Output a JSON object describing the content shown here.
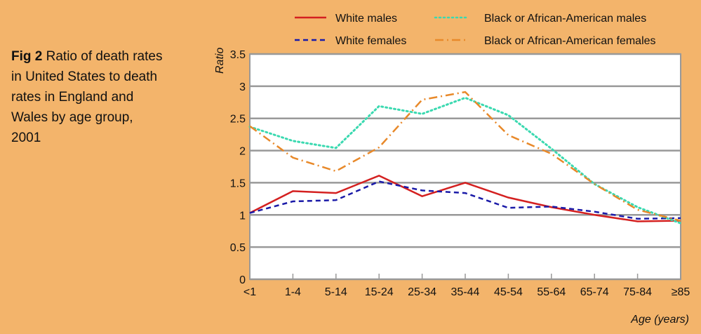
{
  "caption": {
    "fig_label": "Fig 2",
    "text": "Ratio of death rates in United States to death rates in England and Wales by age group, 2001"
  },
  "chart_data": {
    "type": "line",
    "title": "Ratio of death rates in United States to death rates in England and Wales by age group, 2001",
    "xlabel": "Age (years)",
    "ylabel": "Ratio",
    "ylim": [
      0,
      3.5
    ],
    "yticks": [
      "0",
      "0.5",
      "1",
      "1.5",
      "2",
      "2.5",
      "3",
      "3.5"
    ],
    "yticks_values": [
      0,
      0.5,
      1,
      1.5,
      2,
      2.5,
      3,
      3.5
    ],
    "grid": true,
    "legend_position": "top",
    "categories": [
      "<1",
      "1-4",
      "5-14",
      "15-24",
      "25-34",
      "35-44",
      "45-54",
      "55-64",
      "65-74",
      "75-84",
      "≥85"
    ],
    "series": [
      {
        "name": "White males",
        "color": "#d42020",
        "dash": "solid",
        "values": [
          1.03,
          1.37,
          1.34,
          1.61,
          1.29,
          1.5,
          1.27,
          1.12,
          1.0,
          0.9,
          0.91
        ]
      },
      {
        "name": "White females",
        "color": "#1a1aa8",
        "dash": "dashed",
        "values": [
          1.03,
          1.21,
          1.23,
          1.52,
          1.38,
          1.34,
          1.11,
          1.13,
          1.05,
          0.94,
          0.95
        ]
      },
      {
        "name": "Black or African-American males",
        "color": "#3ad9b0",
        "dash": "dotted",
        "values": [
          2.37,
          2.15,
          2.04,
          2.69,
          2.57,
          2.82,
          2.55,
          2.03,
          1.48,
          1.12,
          0.87
        ]
      },
      {
        "name": "Black or African-American females",
        "color": "#e8892a",
        "dash": "dashdot",
        "values": [
          2.38,
          1.89,
          1.68,
          2.05,
          2.79,
          2.91,
          2.24,
          1.95,
          1.48,
          1.08,
          0.91
        ]
      }
    ]
  }
}
